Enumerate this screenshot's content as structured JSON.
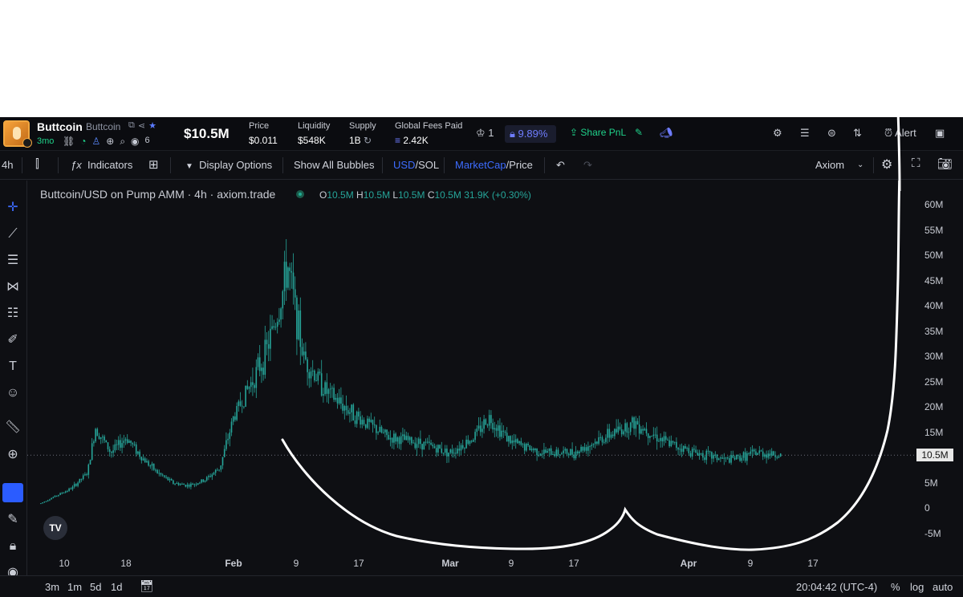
{
  "token": {
    "name": "Buttcoin",
    "ticker": "Buttcoin",
    "age": "3mo",
    "watchers": "6",
    "market_cap": "$10.5M"
  },
  "stats": [
    {
      "label": "Price",
      "value": "$0.011"
    },
    {
      "label": "Liquidity",
      "value": "$548K"
    },
    {
      "label": "Supply",
      "value": "1B"
    },
    {
      "label": "Global Fees Paid",
      "value": "2.42K"
    }
  ],
  "header_right": {
    "holders_count": "1",
    "lock_pct": "9.89%",
    "share_label": "Share PnL",
    "alert_label": "Alert"
  },
  "toolbar": {
    "interval": "4h",
    "indicators": "Indicators",
    "display_options": "Display Options",
    "show_bubbles": "Show All Bubbles",
    "currency_a": "USD",
    "currency_sep": "/SOL",
    "metric_a": "MarketCap",
    "metric_sep": "/Price",
    "theme": "Axiom"
  },
  "legend": {
    "title": "Buttcoin/USD on Pump AMM · 4h · axiom.trade",
    "o": "10.5M",
    "h": "10.5M",
    "l": "10.5M",
    "c": "10.5M",
    "volume": "31.9K",
    "change": "(+0.30%)"
  },
  "bottom": {
    "ranges": [
      "3m",
      "1m",
      "5d",
      "1d"
    ],
    "time": "20:04:42 (UTC-4)",
    "pct": "%",
    "log": "log",
    "auto": "auto"
  },
  "colors": {
    "up": "#26a69a",
    "down": "#ef5350",
    "accent": "#2b5cff",
    "drawing": "#ffffff"
  },
  "chart_data": {
    "type": "candlestick",
    "title": "Buttcoin/USD on Pump AMM · 4h · axiom.trade",
    "y_unit": "market cap (USD)",
    "ylim": [
      -7,
      62
    ],
    "y_ticks": [
      "60M",
      "55M",
      "50M",
      "45M",
      "40M",
      "35M",
      "30M",
      "25M",
      "20M",
      "15M",
      "10M",
      "5M",
      "0",
      "-5M"
    ],
    "x_ticks": [
      "10",
      "18",
      "Feb",
      "9",
      "17",
      "Mar",
      "9",
      "17",
      "Apr",
      "9",
      "17"
    ],
    "current_price_label": "10.5M",
    "series_mc_millions_approx": [
      {
        "date": "Jan 7",
        "value": 1
      },
      {
        "date": "Jan 9",
        "value": 2.5
      },
      {
        "date": "Jan 11",
        "value": 4
      },
      {
        "date": "Jan 13",
        "value": 7
      },
      {
        "date": "Jan 14",
        "value": 16
      },
      {
        "date": "Jan 16",
        "value": 11
      },
      {
        "date": "Jan 18",
        "value": 14
      },
      {
        "date": "Jan 20",
        "value": 10
      },
      {
        "date": "Jan 22",
        "value": 7
      },
      {
        "date": "Jan 24",
        "value": 5
      },
      {
        "date": "Jan 26",
        "value": 4.5
      },
      {
        "date": "Jan 28",
        "value": 5.5
      },
      {
        "date": "Jan 30",
        "value": 8
      },
      {
        "date": "Feb 1",
        "value": 18
      },
      {
        "date": "Feb 3",
        "value": 24
      },
      {
        "date": "Feb 5",
        "value": 30
      },
      {
        "date": "Feb 7",
        "value": 40
      },
      {
        "date": "Feb 8",
        "value": 48
      },
      {
        "date": "Feb 10",
        "value": 30
      },
      {
        "date": "Feb 13",
        "value": 23
      },
      {
        "date": "Feb 17",
        "value": 18
      },
      {
        "date": "Feb 21",
        "value": 14
      },
      {
        "date": "Feb 25",
        "value": 13
      },
      {
        "date": "Mar 1",
        "value": 11
      },
      {
        "date": "Mar 4",
        "value": 14
      },
      {
        "date": "Mar 6",
        "value": 18
      },
      {
        "date": "Mar 9",
        "value": 13
      },
      {
        "date": "Mar 13",
        "value": 11
      },
      {
        "date": "Mar 17",
        "value": 11
      },
      {
        "date": "Mar 21",
        "value": 14
      },
      {
        "date": "Mar 25",
        "value": 17
      },
      {
        "date": "Mar 29",
        "value": 13
      },
      {
        "date": "Apr 2",
        "value": 11
      },
      {
        "date": "Apr 6",
        "value": 9.5
      },
      {
        "date": "Apr 10",
        "value": 11
      },
      {
        "date": "Apr 13",
        "value": 10.5
      }
    ]
  }
}
